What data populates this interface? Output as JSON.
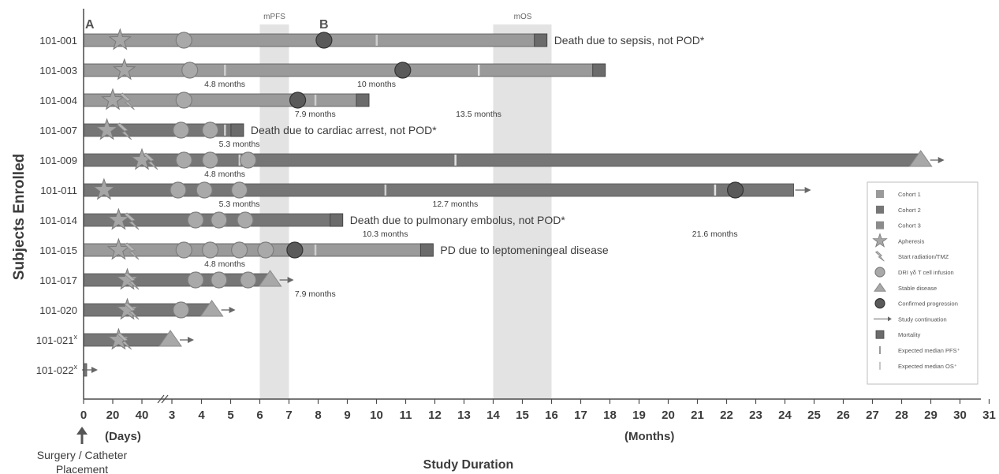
{
  "chart_data": {
    "type": "swimmer",
    "ylabel": "Subjects Enrolled",
    "xlabel": "Study Duration",
    "xlabel_left": "(Days)",
    "xlabel_right": "(Months)",
    "surgery_label": [
      "Surgery / Catheter",
      "Placement"
    ],
    "x_ticks": [
      "0",
      "20",
      "40",
      "3",
      "4",
      "5",
      "6",
      "7",
      "8",
      "9",
      "10",
      "11",
      "12",
      "13",
      "14",
      "15",
      "16",
      "17",
      "18",
      "19",
      "20",
      "21",
      "22",
      "23",
      "24",
      "25",
      "26",
      "27",
      "28",
      "29",
      "30",
      "31"
    ],
    "axis_months_range": [
      0,
      31
    ],
    "panel_labels": [
      "A",
      "B"
    ],
    "shaded_regions": [
      {
        "label": "mPFS",
        "from_month": 6,
        "to_month": 7
      },
      {
        "label": "mOS",
        "from_month": 14,
        "to_month": 16
      }
    ],
    "subjects": [
      {
        "id": "101-001",
        "cohort": 1,
        "end_month": 15.6,
        "end": "mortality",
        "apheresis_day": 25,
        "radiation_day": null,
        "infusions_month": [
          3.4
        ],
        "progression_month": 8.2,
        "expected_pfs_month": 10,
        "expected_os_month": null,
        "annotation": "Death due to sepsis, not POD*"
      },
      {
        "id": "101-003",
        "cohort": 1,
        "end_month": 17.6,
        "end": "mortality",
        "apheresis_day": 28,
        "radiation_day": null,
        "infusions_month": [
          3.6
        ],
        "progression_month": 10.9,
        "expected_pfs_month": 4.8,
        "expected_os_month": 13.5,
        "annotation": ""
      },
      {
        "id": "101-004",
        "cohort": 1,
        "end_month": 9.5,
        "end": "mortality",
        "apheresis_day": 20,
        "radiation_day": 30,
        "infusions_month": [
          3.4
        ],
        "progression_month": 7.3,
        "expected_pfs_month": 7.9,
        "expected_os_month": null,
        "annotation": ""
      },
      {
        "id": "101-007",
        "cohort": 2,
        "end_month": 5.2,
        "end": "mortality",
        "apheresis_day": 16,
        "radiation_day": 28,
        "infusions_month": [
          3.3,
          4.3
        ],
        "progression_month": null,
        "expected_pfs_month": 4.8,
        "expected_os_month": null,
        "annotation": "Death due to cardiac arrest, not POD*"
      },
      {
        "id": "101-009",
        "cohort": 2,
        "end_month": 28.6,
        "end": "stable",
        "apheresis_day": 40,
        "radiation_day": 46,
        "infusions_month": [
          3.4,
          4.3,
          5.6
        ],
        "progression_month": null,
        "expected_pfs_month": 5.3,
        "expected_os_month": 12.7,
        "annotation": ""
      },
      {
        "id": "101-011",
        "cohort": 2,
        "end_month": 24.3,
        "end": "continuation",
        "apheresis_day": 14,
        "radiation_day": null,
        "infusions_month": [
          3.2,
          4.1,
          5.3
        ],
        "progression_month": 22.3,
        "expected_pfs_month": 10.3,
        "expected_os_month": 21.6,
        "annotation": ""
      },
      {
        "id": "101-014",
        "cohort": 2,
        "end_month": 8.6,
        "end": "mortality",
        "apheresis_day": 24,
        "radiation_day": 33,
        "infusions_month": [
          3.8,
          4.6,
          5.5
        ],
        "progression_month": null,
        "expected_pfs_month": 4.8,
        "expected_os_month": null,
        "annotation": "Death due to pulmonary embolus, not POD*"
      },
      {
        "id": "101-015",
        "cohort": 1,
        "end_month": 11.7,
        "end": "mortality",
        "apheresis_day": 24,
        "radiation_day": 33,
        "infusions_month": [
          3.4,
          4.3,
          5.3,
          6.2
        ],
        "progression_month": 7.2,
        "expected_pfs_month": 7.9,
        "expected_os_month": null,
        "annotation": "PD due to leptomeningeal disease"
      },
      {
        "id": "101-017",
        "cohort": 2,
        "end_month": 6.3,
        "end": "stable",
        "apheresis_day": 30,
        "radiation_day": 33,
        "infusions_month": [
          3.8,
          4.6,
          5.6
        ],
        "progression_month": null,
        "expected_pfs_month": null,
        "expected_os_month": null,
        "annotation": ""
      },
      {
        "id": "101-020",
        "cohort": 2,
        "end_month": 4.3,
        "end": "stable",
        "apheresis_day": 30,
        "radiation_day": 33,
        "infusions_month": [
          3.3
        ],
        "progression_month": null,
        "expected_pfs_month": null,
        "expected_os_month": null,
        "annotation": ""
      },
      {
        "id": "101-021",
        "superscript": "x",
        "cohort": 2,
        "end_month": 2.9,
        "end": "stable",
        "apheresis_day": 24,
        "radiation_day": 28,
        "infusions_month": [],
        "progression_month": null,
        "expected_pfs_month": null,
        "expected_os_month": null,
        "annotation": ""
      },
      {
        "id": "101-022",
        "superscript": "x",
        "cohort": 2,
        "end_month": 0.1,
        "end": "continuation",
        "apheresis_day": null,
        "radiation_day": null,
        "infusions_month": [],
        "progression_month": null,
        "expected_pfs_month": null,
        "expected_os_month": null,
        "annotation": ""
      }
    ],
    "month_labels": [
      {
        "text": "4.8 months",
        "row": 1,
        "at_month": 4.8
      },
      {
        "text": "10 months",
        "row": 1,
        "at_month": 10
      },
      {
        "text": "13.5 months",
        "row": 2,
        "at_month": 13.5
      },
      {
        "text": "7.9 months",
        "row": 2,
        "at_month": 7.9
      },
      {
        "text": "5.3 months",
        "row": 3,
        "at_month": 5.3
      },
      {
        "text": "4.8 months",
        "row": 4,
        "at_month": 4.8
      },
      {
        "text": "12.7 months",
        "row": 5,
        "at_month": 12.7
      },
      {
        "text": "5.3 months",
        "row": 5,
        "at_month": 5.3
      },
      {
        "text": "10.3 months",
        "row": 6,
        "at_month": 10.3
      },
      {
        "text": "21.6 months",
        "row": 6,
        "at_month": 21.6
      },
      {
        "text": "4.8 months",
        "row": 7,
        "at_month": 4.8
      },
      {
        "text": "7.9 months",
        "row": 8,
        "at_month": 7.9
      }
    ],
    "legend": [
      {
        "symbol": "cohort1",
        "label": "Cohort 1"
      },
      {
        "symbol": "cohort2",
        "label": "Cohort 2"
      },
      {
        "symbol": "cohort3",
        "label": "Cohort 3"
      },
      {
        "symbol": "star",
        "label": "Apheresis"
      },
      {
        "symbol": "bolt",
        "label": "Start radiation/TMZ"
      },
      {
        "symbol": "circle",
        "label": "DRI γδ T cell infusion"
      },
      {
        "symbol": "triangle",
        "label": "Stable disease"
      },
      {
        "symbol": "darkcircle",
        "label": "Confirmed progression"
      },
      {
        "symbol": "arrow",
        "label": "Study continuation"
      },
      {
        "symbol": "square",
        "label": "Mortality"
      },
      {
        "symbol": "tick-light",
        "label": "Expected median PFS⁺"
      },
      {
        "symbol": "tick-lighter",
        "label": "Expected median OS⁺"
      }
    ],
    "colors": {
      "cohort1": "#9a9a9a",
      "cohort2": "#767676",
      "cohort3": "#8c8c8c",
      "infusion": "#a9a9a9",
      "progression": "#5a5a5a",
      "mortality": "#6b6b6b",
      "shade": "#e3e3e3",
      "axis": "#4a4a4a"
    }
  }
}
